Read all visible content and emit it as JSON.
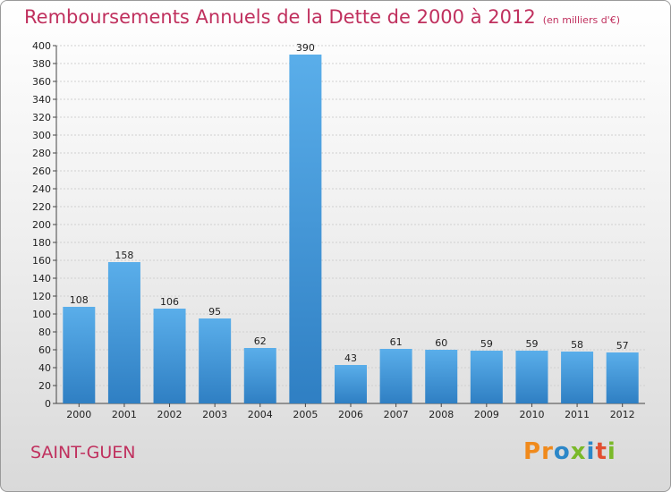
{
  "header": {
    "title": "Remboursements Annuels de la Dette de 2000 à 2012",
    "unit": "(en milliers d'€)"
  },
  "footer": {
    "commune": "SAINT-GUEN",
    "brand": "Proxiti"
  },
  "colors": {
    "accent": "#c0305e",
    "bar_light": "#5aaeea",
    "bar_dark": "#2f7fc3",
    "logo": [
      "#f08a1c",
      "#f08a1c",
      "#2c87c8",
      "#7ab929",
      "#2c87c8",
      "#e24f31",
      "#7ab929"
    ]
  },
  "chart_data": {
    "type": "bar",
    "title": "Remboursements Annuels de la Dette de 2000 à 2012",
    "subtitle": "(en milliers d'€)",
    "xlabel": "",
    "ylabel": "",
    "categories": [
      "2000",
      "2001",
      "2002",
      "2003",
      "2004",
      "2005",
      "2006",
      "2007",
      "2008",
      "2009",
      "2010",
      "2011",
      "2012"
    ],
    "values": [
      108,
      158,
      106,
      95,
      62,
      390,
      43,
      61,
      60,
      59,
      59,
      58,
      57
    ],
    "ylim": [
      0,
      400
    ],
    "ytick_step": 20,
    "grid": true
  }
}
